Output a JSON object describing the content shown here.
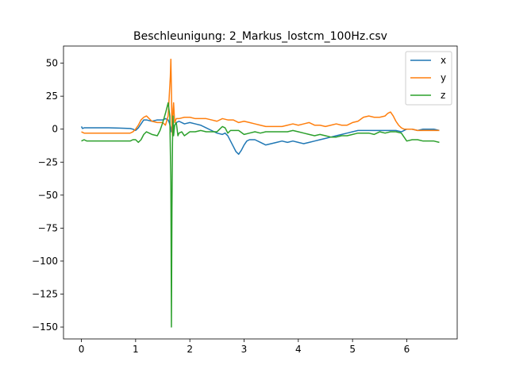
{
  "chart_data": {
    "type": "line",
    "title": "Beschleunigung: 2_Markus_lostcm_100Hz.csv",
    "xlabel": "",
    "ylabel": "",
    "xlim": [
      -0.33,
      6.93
    ],
    "ylim": [
      -159,
      63
    ],
    "xticks": [
      0,
      1,
      2,
      3,
      4,
      5,
      6
    ],
    "xtick_labels": [
      "0",
      "1",
      "2",
      "3",
      "4",
      "5",
      "6"
    ],
    "yticks": [
      50,
      25,
      0,
      -25,
      -50,
      -75,
      -100,
      -125,
      -150
    ],
    "ytick_labels": [
      "50",
      "25",
      "0",
      "−25",
      "−50",
      "−75",
      "−100",
      "−125",
      "−150"
    ],
    "grid": false,
    "legend_position": "top-right",
    "series": [
      {
        "name": "x",
        "color": "#1f77b4",
        "x": [
          0,
          0.02,
          0.05,
          0.1,
          0.3,
          0.5,
          0.7,
          0.9,
          0.95,
          1.0,
          1.05,
          1.1,
          1.15,
          1.2,
          1.3,
          1.4,
          1.5,
          1.55,
          1.6,
          1.62,
          1.64,
          1.66,
          1.68,
          1.7,
          1.72,
          1.75,
          1.8,
          1.9,
          2.0,
          2.1,
          2.2,
          2.3,
          2.4,
          2.5,
          2.6,
          2.65,
          2.7,
          2.75,
          2.8,
          2.85,
          2.9,
          2.95,
          3.0,
          3.05,
          3.1,
          3.2,
          3.3,
          3.4,
          3.5,
          3.6,
          3.7,
          3.8,
          3.9,
          4.0,
          4.1,
          4.2,
          4.3,
          4.4,
          4.5,
          4.6,
          4.7,
          4.8,
          4.9,
          5.0,
          5.1,
          5.2,
          5.3,
          5.4,
          5.5,
          5.6,
          5.7,
          5.8,
          5.9,
          6.0,
          6.1,
          6.2,
          6.3,
          6.4,
          6.5,
          6.6
        ],
        "y": [
          2,
          0.5,
          1,
          1,
          1,
          1,
          0.8,
          0.5,
          0,
          -1,
          1,
          4,
          7,
          7,
          6,
          7,
          7,
          8,
          7,
          5,
          2,
          -2,
          8,
          -3,
          3,
          5,
          6,
          4,
          5,
          4,
          3,
          1,
          -1,
          -3,
          -4,
          -3,
          -5,
          -9,
          -13,
          -17,
          -19,
          -16,
          -12,
          -9,
          -8,
          -8,
          -10,
          -12,
          -11,
          -10,
          -9,
          -10,
          -9,
          -10,
          -11,
          -10,
          -9,
          -8,
          -7,
          -6,
          -5,
          -4,
          -3,
          -2,
          -1,
          -1,
          -1,
          -1,
          -1,
          -1,
          -1,
          -1,
          -2,
          0,
          0,
          -1,
          0,
          0,
          0,
          -1
        ]
      },
      {
        "name": "y",
        "color": "#ff7f0e",
        "x": [
          0,
          0.05,
          0.1,
          0.3,
          0.5,
          0.7,
          0.9,
          0.95,
          1.0,
          1.05,
          1.1,
          1.15,
          1.2,
          1.3,
          1.4,
          1.5,
          1.55,
          1.6,
          1.62,
          1.64,
          1.65,
          1.66,
          1.67,
          1.68,
          1.69,
          1.7,
          1.72,
          1.75,
          1.8,
          1.9,
          2.0,
          2.1,
          2.2,
          2.3,
          2.4,
          2.5,
          2.6,
          2.7,
          2.8,
          2.9,
          3.0,
          3.1,
          3.2,
          3.3,
          3.4,
          3.5,
          3.6,
          3.7,
          3.8,
          3.9,
          4.0,
          4.1,
          4.2,
          4.3,
          4.4,
          4.5,
          4.6,
          4.7,
          4.8,
          4.9,
          5.0,
          5.1,
          5.2,
          5.3,
          5.4,
          5.5,
          5.6,
          5.65,
          5.7,
          5.75,
          5.8,
          5.85,
          5.9,
          5.95,
          6.0,
          6.1,
          6.2,
          6.3,
          6.4,
          6.5,
          6.6
        ],
        "y": [
          -2,
          -3,
          -3,
          -3,
          -3,
          -3,
          -3,
          -2,
          0,
          3,
          7,
          9,
          10,
          6,
          5,
          5,
          3,
          10,
          25,
          40,
          53,
          30,
          0,
          -5,
          15,
          20,
          5,
          8,
          8,
          9,
          9,
          8,
          8,
          8,
          7,
          6,
          8,
          7,
          7,
          5,
          6,
          5,
          4,
          3,
          2,
          2,
          2,
          2,
          3,
          4,
          3,
          4,
          5,
          3,
          3,
          2,
          3,
          4,
          3,
          3,
          5,
          6,
          9,
          10,
          9,
          9,
          10,
          12,
          13,
          10,
          6,
          3,
          1,
          0,
          0,
          0,
          -1,
          -1,
          -1,
          -1,
          -1
        ]
      },
      {
        "name": "z",
        "color": "#2ca02c",
        "x": [
          0,
          0.05,
          0.1,
          0.3,
          0.5,
          0.7,
          0.9,
          0.95,
          1.0,
          1.05,
          1.1,
          1.15,
          1.2,
          1.3,
          1.4,
          1.45,
          1.5,
          1.55,
          1.6,
          1.63,
          1.65,
          1.66,
          1.67,
          1.68,
          1.69,
          1.7,
          1.72,
          1.75,
          1.78,
          1.8,
          1.85,
          1.9,
          2.0,
          2.1,
          2.2,
          2.3,
          2.4,
          2.5,
          2.55,
          2.6,
          2.65,
          2.7,
          2.75,
          2.8,
          2.9,
          3.0,
          3.1,
          3.2,
          3.3,
          3.4,
          3.5,
          3.6,
          3.7,
          3.8,
          3.9,
          4.0,
          4.1,
          4.2,
          4.3,
          4.4,
          4.5,
          4.6,
          4.7,
          4.8,
          4.9,
          5.0,
          5.1,
          5.2,
          5.3,
          5.4,
          5.5,
          5.6,
          5.7,
          5.8,
          5.9,
          6.0,
          6.1,
          6.2,
          6.3,
          6.4,
          6.5,
          6.6
        ],
        "y": [
          -9,
          -8,
          -9,
          -9,
          -9,
          -9,
          -9,
          -8,
          -8,
          -10,
          -8,
          -4,
          -2,
          -4,
          -5,
          -1,
          5,
          12,
          20,
          10,
          -40,
          -150,
          -60,
          -10,
          10,
          -5,
          3,
          5,
          -5,
          -3,
          -2,
          -5,
          -2,
          -2,
          -1,
          -2,
          -2,
          -2,
          0,
          2,
          1,
          -3,
          -1,
          -1,
          -1,
          -4,
          -3,
          -2,
          -3,
          -2,
          -2,
          -2,
          -2,
          -2,
          -1,
          -2,
          -3,
          -4,
          -5,
          -4,
          -5,
          -6,
          -6,
          -5,
          -5,
          -4,
          -3,
          -3,
          -3,
          -4,
          -2,
          -3,
          -2,
          -2,
          -3,
          -9,
          -8,
          -8,
          -9,
          -9,
          -9,
          -10
        ]
      }
    ]
  }
}
